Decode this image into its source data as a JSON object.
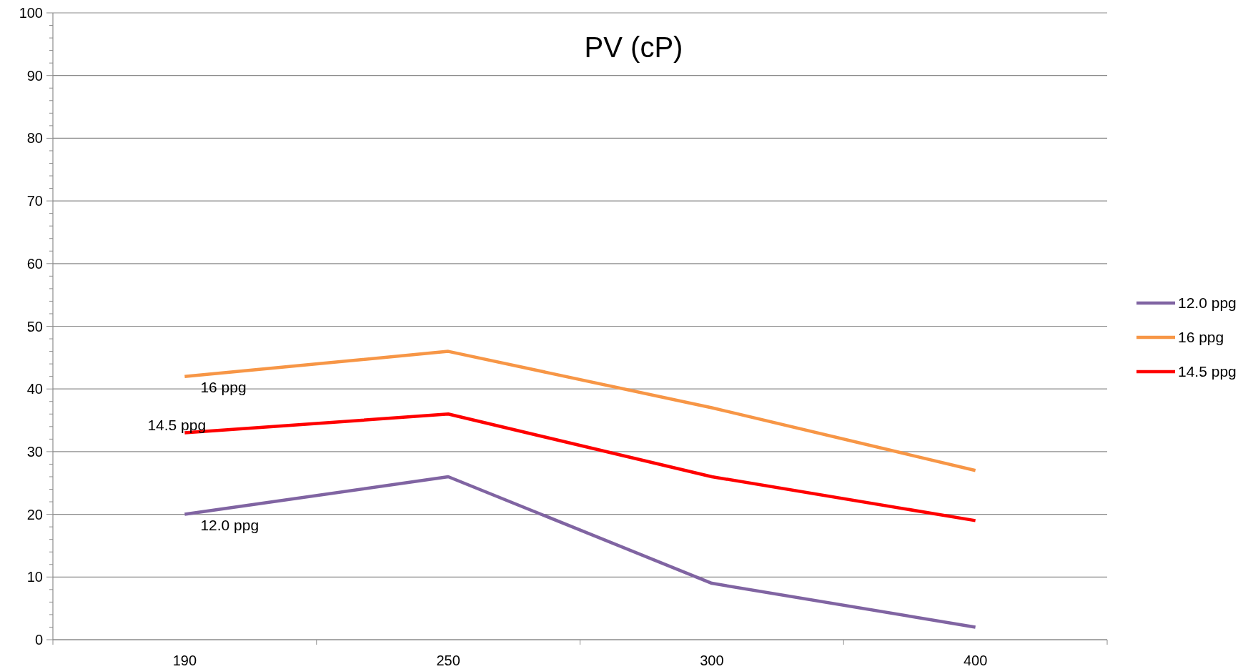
{
  "chart_data": {
    "type": "line",
    "title": "PV (cP)",
    "categories": [
      "190",
      "250",
      "300",
      "400"
    ],
    "series": [
      {
        "name": "12.0 ppg",
        "color": "#8064a2",
        "values": [
          20,
          26,
          9,
          2
        ]
      },
      {
        "name": "16 ppg",
        "color": "#f79646",
        "values": [
          42,
          46,
          37,
          27
        ]
      },
      {
        "name": "14.5 ppg",
        "color": "#ff0000",
        "values": [
          33,
          36,
          26,
          19
        ]
      }
    ],
    "annotations": [
      {
        "text": "16 ppg",
        "x": "190",
        "y": 42
      },
      {
        "text": "14.5 ppg",
        "x": "190",
        "y": 33
      },
      {
        "text": "12.0 ppg",
        "x": "190",
        "y": 20
      }
    ],
    "ylim": [
      0,
      100
    ],
    "yticks": [
      0,
      {
        "value": 2,
        "label": null
      },
      {
        "value": 4,
        "label": null
      },
      {
        "value": 6,
        "label": null
      },
      {
        "value": 8,
        "label": null
      },
      10,
      {
        "value": 12,
        "label": null
      },
      {
        "value": 14,
        "label": null
      },
      {
        "value": 16,
        "label": null
      },
      {
        "value": 18,
        "label": null
      },
      20,
      {
        "value": 22,
        "label": null
      },
      {
        "value": 24,
        "label": null
      },
      {
        "value": 26,
        "label": null
      },
      {
        "value": 28,
        "label": null
      },
      30,
      {
        "value": 32,
        "label": null
      },
      {
        "value": 34,
        "label": null
      },
      {
        "value": 36,
        "label": null
      },
      {
        "value": 38,
        "label": null
      },
      40,
      {
        "value": 42,
        "label": null
      },
      {
        "value": 44,
        "label": null
      },
      {
        "value": 46,
        "label": null
      },
      {
        "value": 48,
        "label": null
      },
      50,
      {
        "value": 52,
        "label": null
      },
      {
        "value": 54,
        "label": null
      },
      {
        "value": 56,
        "label": null
      },
      {
        "value": 58,
        "label": null
      },
      60,
      {
        "value": 62,
        "label": null
      },
      {
        "value": 64,
        "label": null
      },
      {
        "value": 66,
        "label": null
      },
      {
        "value": 68,
        "label": null
      },
      70,
      {
        "value": 72,
        "label": null
      },
      {
        "value": 74,
        "label": null
      },
      {
        "value": 76,
        "label": null
      },
      {
        "value": 78,
        "label": null
      },
      80,
      {
        "value": 82,
        "label": null
      },
      {
        "value": 84,
        "label": null
      },
      {
        "value": 86,
        "label": null
      },
      {
        "value": 88,
        "label": null
      },
      90,
      {
        "value": 92,
        "label": null
      },
      {
        "value": 94,
        "label": null
      },
      {
        "value": 96,
        "label": null
      },
      {
        "value": 98,
        "label": null
      },
      100
    ],
    "grid": "y",
    "legend": "right",
    "marker": "none",
    "line_style": "solid"
  }
}
